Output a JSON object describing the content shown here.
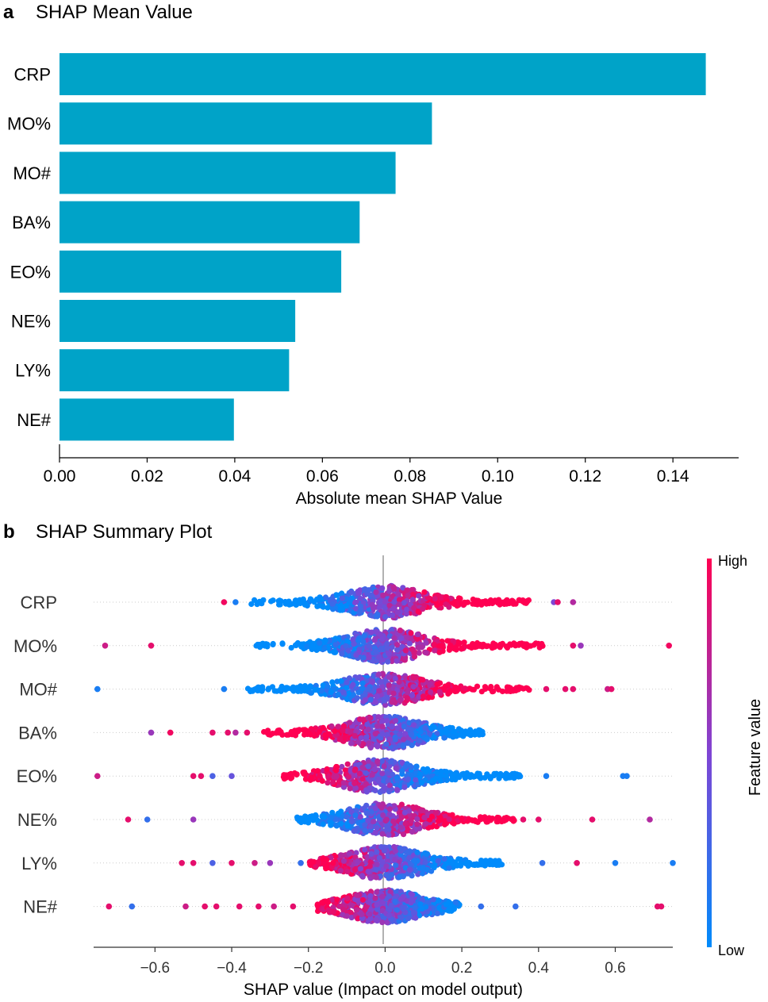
{
  "chart_data": [
    {
      "panel": "a",
      "type": "bar",
      "orientation": "horizontal",
      "title": "SHAP Mean Value",
      "xlabel": "Absolute mean SHAP Value",
      "ylabel": "",
      "xlim": [
        0,
        0.155
      ],
      "xticks": [
        0.0,
        0.02,
        0.04,
        0.06,
        0.08,
        0.1,
        0.12,
        0.14
      ],
      "xtick_labels": [
        "0.00",
        "0.02",
        "0.04",
        "0.06",
        "0.08",
        "0.10",
        "0.12",
        "0.14"
      ],
      "grid": false,
      "bar_color": "#00a3c8",
      "categories": [
        "CRP",
        "MO%",
        "MO#",
        "BA%",
        "EO%",
        "NE%",
        "LY%",
        "NE#"
      ],
      "values": [
        0.1475,
        0.085,
        0.0767,
        0.0685,
        0.0643,
        0.0538,
        0.0524,
        0.0398
      ]
    },
    {
      "panel": "b",
      "type": "scatter",
      "subtype": "beeswarm",
      "title": "SHAP Summary Plot",
      "xlabel": "SHAP value (Impact on model output)",
      "xlim": [
        -0.76,
        0.75
      ],
      "xticks": [
        -0.6,
        -0.4,
        -0.2,
        0.0,
        0.2,
        0.4,
        0.6
      ],
      "xtick_labels": [
        "−0.6",
        "−0.4",
        "−0.2",
        "0.0",
        "0.2",
        "0.4",
        "0.6"
      ],
      "colorbar": {
        "label": "Feature value",
        "high_label": "High",
        "low_label": "Low",
        "low_color": "#008bfb",
        "high_color": "#ff0052"
      },
      "features": [
        {
          "name": "CRP",
          "core_range": [
            -0.35,
            0.39
          ],
          "core_center": 0.0,
          "bias_shift": 0.2,
          "outliers": [
            [
              -0.42,
              0.95
            ],
            [
              -0.39,
              0.1
            ],
            [
              0.44,
              0.5
            ],
            [
              0.45,
              0.9
            ],
            [
              0.49,
              0.7
            ]
          ]
        },
        {
          "name": "MO%",
          "core_range": [
            -0.34,
            0.42
          ],
          "core_center": 0.0,
          "bias_shift": 0.15,
          "outliers": [
            [
              -0.73,
              0.8
            ],
            [
              -0.61,
              0.9
            ],
            [
              0.49,
              0.9
            ],
            [
              0.51,
              0.6
            ],
            [
              0.74,
              0.95
            ]
          ]
        },
        {
          "name": "MO#",
          "core_range": [
            -0.36,
            0.38
          ],
          "core_center": 0.0,
          "bias_shift": 0.15,
          "outliers": [
            [
              -0.75,
              0.1
            ],
            [
              -0.42,
              0.1
            ],
            [
              0.42,
              0.9
            ],
            [
              0.47,
              0.9
            ],
            [
              0.49,
              0.9
            ],
            [
              0.58,
              0.8
            ],
            [
              0.59,
              0.9
            ]
          ]
        },
        {
          "name": "BA%",
          "core_range": [
            -0.32,
            0.26
          ],
          "core_center": 0.0,
          "bias_shift": -0.15,
          "outliers": [
            [
              -0.61,
              0.6
            ],
            [
              -0.56,
              0.95
            ],
            [
              -0.45,
              0.9
            ],
            [
              -0.41,
              0.9
            ],
            [
              -0.39,
              0.7
            ],
            [
              -0.36,
              0.9
            ]
          ]
        },
        {
          "name": "EO%",
          "core_range": [
            -0.27,
            0.36
          ],
          "core_center": -0.02,
          "bias_shift": -0.15,
          "outliers": [
            [
              -0.75,
              0.8
            ],
            [
              -0.5,
              0.9
            ],
            [
              -0.48,
              0.9
            ],
            [
              -0.45,
              0.3
            ],
            [
              -0.4,
              0.4
            ],
            [
              0.42,
              0.1
            ],
            [
              0.63,
              0.1
            ],
            [
              0.62,
              0.1
            ]
          ]
        },
        {
          "name": "NE%",
          "core_range": [
            -0.23,
            0.34
          ],
          "core_center": 0.0,
          "bias_shift": 0.1,
          "outliers": [
            [
              -0.67,
              0.9
            ],
            [
              -0.62,
              0.2
            ],
            [
              -0.5,
              0.6
            ],
            [
              0.36,
              0.9
            ],
            [
              0.4,
              0.9
            ],
            [
              0.54,
              0.9
            ],
            [
              0.69,
              0.7
            ]
          ]
        },
        {
          "name": "LY%",
          "core_range": [
            -0.2,
            0.31
          ],
          "core_center": 0.0,
          "bias_shift": -0.1,
          "outliers": [
            [
              -0.53,
              0.9
            ],
            [
              -0.5,
              0.9
            ],
            [
              -0.45,
              0.3
            ],
            [
              -0.4,
              0.9
            ],
            [
              -0.34,
              0.8
            ],
            [
              -0.3,
              0.6
            ],
            [
              -0.22,
              0.2
            ],
            [
              0.41,
              0.2
            ],
            [
              0.5,
              0.9
            ],
            [
              0.6,
              0.1
            ],
            [
              0.75,
              0.1
            ]
          ]
        },
        {
          "name": "NE#",
          "core_range": [
            -0.18,
            0.2
          ],
          "core_center": 0.0,
          "bias_shift": -0.1,
          "outliers": [
            [
              -0.72,
              0.9
            ],
            [
              -0.66,
              0.2
            ],
            [
              -0.52,
              0.8
            ],
            [
              -0.47,
              0.9
            ],
            [
              -0.44,
              0.9
            ],
            [
              -0.38,
              0.9
            ],
            [
              -0.33,
              0.9
            ],
            [
              -0.29,
              0.8
            ],
            [
              -0.24,
              0.9
            ],
            [
              0.25,
              0.2
            ],
            [
              0.34,
              0.2
            ],
            [
              0.71,
              0.9
            ],
            [
              0.72,
              0.9
            ]
          ]
        }
      ]
    }
  ]
}
